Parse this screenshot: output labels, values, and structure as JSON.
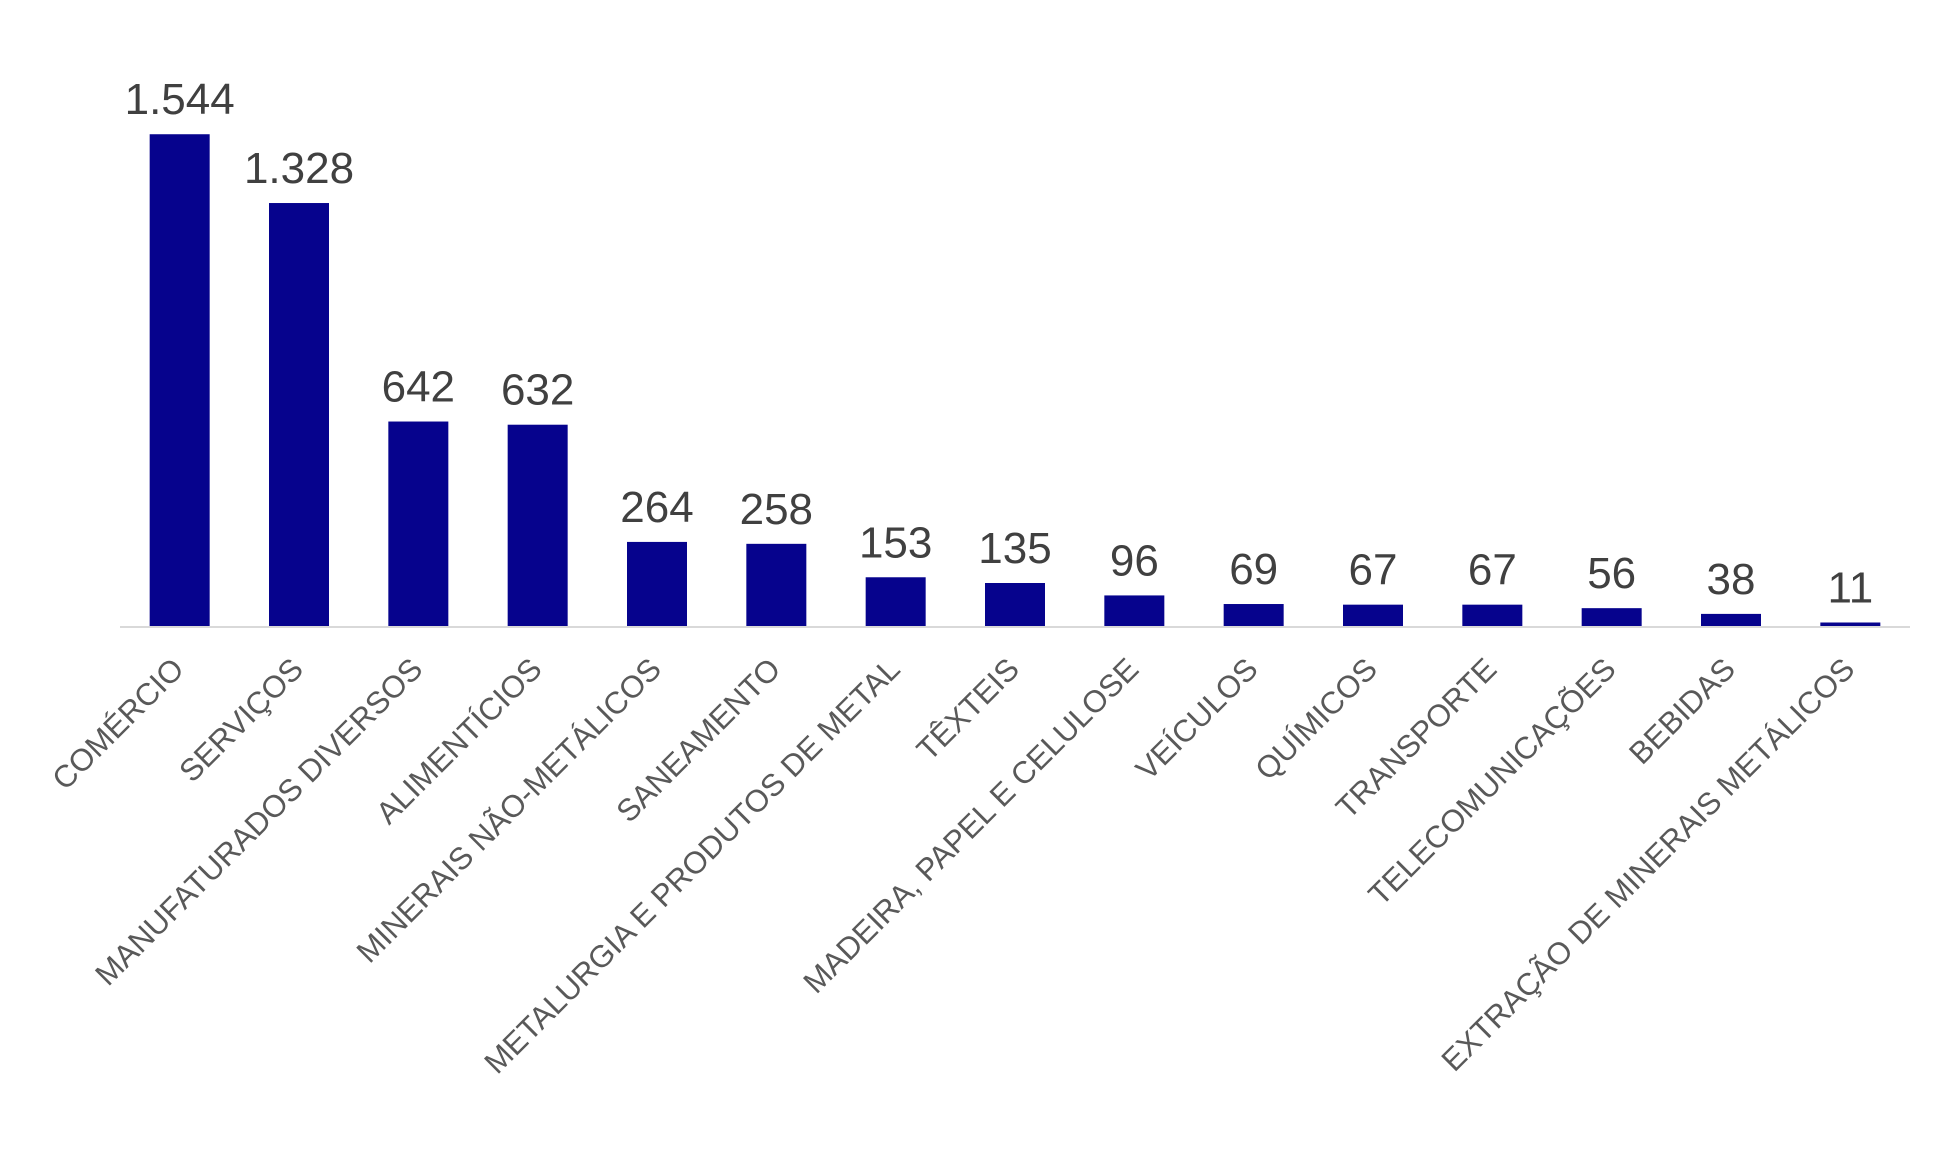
{
  "chart_data": {
    "type": "bar",
    "categories": [
      "COMÉRCIO",
      "SERVIÇOS",
      "MANUFATURADOS DIVERSOS",
      "ALIMENTÍCIOS",
      "MINERAIS NÃO-METÁLICOS",
      "SANEAMENTO",
      "METALURGIA E PRODUTOS DE METAL",
      "TÊXTEIS",
      "MADEIRA, PAPEL E CELULOSE",
      "VEÍCULOS",
      "QUÍMICOS",
      "TRANSPORTE",
      "TELECOMUNICAÇÕES",
      "BEBIDAS",
      "EXTRAÇÃO DE MINERAIS METÁLICOS"
    ],
    "values": [
      1544,
      1328,
      642,
      632,
      264,
      258,
      153,
      135,
      96,
      69,
      67,
      67,
      56,
      38,
      11
    ],
    "value_labels": [
      "1.544",
      "1.328",
      "642",
      "632",
      "264",
      "258",
      "153",
      "135",
      "96",
      "69",
      "67",
      "67",
      "56",
      "38",
      "11"
    ],
    "ylim": [
      0,
      1600
    ],
    "grid": false,
    "legend": "none",
    "colors": {
      "bar": "#06038D",
      "axis": "#D9D9D9"
    }
  }
}
